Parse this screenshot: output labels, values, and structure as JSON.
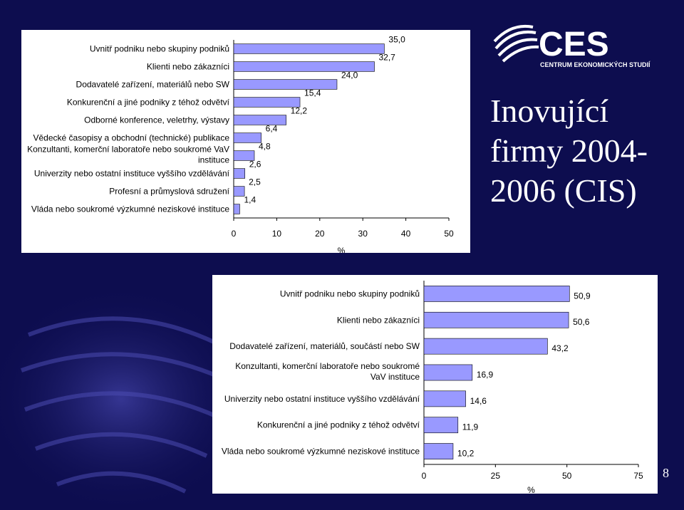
{
  "slide": {
    "title": "Inovující firmy 2004-2006 (CIS)",
    "page_number": "8",
    "colors": {
      "background": "#0d0d4f",
      "bar": "#9999ff",
      "panel": "#ffffff"
    }
  },
  "logo": {
    "text": "CES",
    "subtitle": "CENTRUM EKONOMICKÝCH STUDIÍ",
    "icon": "globe-swirl-icon"
  },
  "chart_data": [
    {
      "type": "bar",
      "orientation": "horizontal",
      "categories": [
        "Uvnitř podniku nebo skupiny podniků",
        "Klienti nebo zákazníci",
        "Dodavatelé zařízení, materiálů nebo SW",
        "Konkurenční a jiné podniky z téhož odvětví",
        "Odborné konference, veletrhy, výstavy",
        "Vědecké časopisy a obchodní (technické) publikace",
        "Konzultanti, komerční laboratoře nebo soukromé VaV instituce",
        "Univerzity nebo ostatní instituce vyššího vzdělávání",
        "Profesní a průmyslová sdružení",
        "Vláda nebo soukromé výzkumné neziskové instituce"
      ],
      "values": [
        35.0,
        32.7,
        24.0,
        15.4,
        12.2,
        6.4,
        4.8,
        2.6,
        2.5,
        1.4
      ],
      "value_labels": [
        "35,0",
        "32,7",
        "24,0",
        "15,4",
        "12,2",
        "6,4",
        "4,8",
        "2,6",
        "2,5",
        "1,4"
      ],
      "xlim": [
        0,
        50
      ],
      "ticks": [
        0,
        10,
        20,
        30,
        40,
        50
      ],
      "tick_labels": [
        "0",
        "10",
        "20",
        "30",
        "40",
        "50"
      ],
      "xlabel": "%",
      "grid": false
    },
    {
      "type": "bar",
      "orientation": "horizontal",
      "categories": [
        "Uvnitř podniku nebo skupiny podniků",
        "Klienti nebo zákazníci",
        "Dodavatelé zařízení, materiálů, součástí nebo SW",
        "Konzultanti, komerční laboratoře nebo soukromé VaV instituce",
        "Univerzity nebo ostatní instituce vyššího vzdělávání",
        "Konkurenční a jiné podniky z téhož odvětví",
        "Vláda nebo soukromé výzkumné neziskové instituce"
      ],
      "values": [
        50.9,
        50.6,
        43.2,
        16.9,
        14.6,
        11.9,
        10.2
      ],
      "value_labels": [
        "50,9",
        "50,6",
        "43,2",
        "16,9",
        "14,6",
        "11,9",
        "10,2"
      ],
      "xlim": [
        0,
        75
      ],
      "ticks": [
        0,
        25,
        50,
        75
      ],
      "tick_labels": [
        "0",
        "25",
        "50",
        "75"
      ],
      "xlabel": "%",
      "grid": false
    }
  ]
}
